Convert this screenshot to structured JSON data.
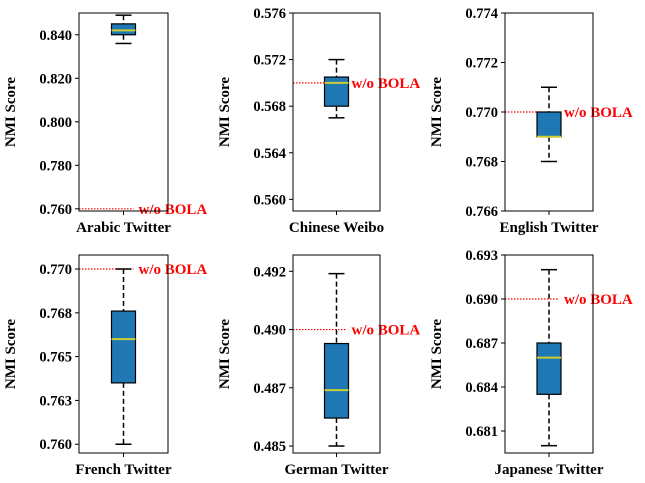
{
  "chart_data": [
    {
      "type": "box",
      "xlabel": "Arabic Twitter",
      "ylabel": "NMI Score",
      "ylim": [
        0.759,
        0.85
      ],
      "yticks": [
        "0.760",
        "0.780",
        "0.800",
        "0.820",
        "0.840"
      ],
      "tick_values": [
        0.76,
        0.78,
        0.8,
        0.82,
        0.84
      ],
      "box": {
        "whisker_low": 0.836,
        "q1": 0.84,
        "median": 0.842,
        "q3": 0.845,
        "whisker_high": 0.849
      },
      "reference": {
        "label": "w/o BOLA",
        "value": 0.76
      }
    },
    {
      "type": "box",
      "xlabel": "Chinese Weibo",
      "ylabel": "NMI Score",
      "ylim": [
        0.559,
        0.576
      ],
      "yticks": [
        "0.560",
        "0.564",
        "0.568",
        "0.572",
        "0.576"
      ],
      "tick_values": [
        0.56,
        0.564,
        0.568,
        0.572,
        0.576
      ],
      "box": {
        "whisker_low": 0.567,
        "q1": 0.568,
        "median": 0.57,
        "q3": 0.5705,
        "whisker_high": 0.572
      },
      "reference": {
        "label": "w/o BOLA",
        "value": 0.57
      }
    },
    {
      "type": "box",
      "xlabel": "English Twitter",
      "ylabel": "NMI Score",
      "ylim": [
        0.766,
        0.774
      ],
      "yticks": [
        "0.766",
        "0.768",
        "0.770",
        "0.772",
        "0.774"
      ],
      "tick_values": [
        0.766,
        0.768,
        0.77,
        0.772,
        0.774
      ],
      "box": {
        "whisker_low": 0.768,
        "q1": 0.769,
        "median": 0.769,
        "q3": 0.77,
        "whisker_high": 0.771
      },
      "reference": {
        "label": "w/o BOLA",
        "value": 0.77
      }
    },
    {
      "type": "box",
      "xlabel": "French Twitter",
      "ylabel": "NMI Score",
      "ylim": [
        0.7595,
        0.7708
      ],
      "yticks": [
        "0.760",
        "0.763",
        "0.765",
        "0.768",
        "0.770"
      ],
      "tick_values": [
        0.76,
        0.7625,
        0.765,
        0.7675,
        0.77
      ],
      "box": {
        "whisker_low": 0.76,
        "q1": 0.7635,
        "median": 0.766,
        "q3": 0.7676,
        "whisker_high": 0.77
      },
      "reference": {
        "label": "w/o BOLA",
        "value": 0.77
      }
    },
    {
      "type": "box",
      "xlabel": "German Twitter",
      "ylabel": "NMI Score",
      "ylim": [
        0.4847,
        0.4932
      ],
      "yticks": [
        "0.485",
        "0.487",
        "0.490",
        "0.492"
      ],
      "tick_values": [
        0.485,
        0.4875,
        0.49,
        0.4925
      ],
      "box": {
        "whisker_low": 0.485,
        "q1": 0.4862,
        "median": 0.4874,
        "q3": 0.4894,
        "whisker_high": 0.4924
      },
      "reference": {
        "label": "w/o BOLA",
        "value": 0.49
      }
    },
    {
      "type": "box",
      "xlabel": "Japanese Twitter",
      "ylabel": "NMI Score",
      "ylim": [
        0.6795,
        0.693
      ],
      "yticks": [
        "0.681",
        "0.684",
        "0.687",
        "0.690",
        "0.693"
      ],
      "tick_values": [
        0.681,
        0.684,
        0.687,
        0.69,
        0.693
      ],
      "box": {
        "whisker_low": 0.68,
        "q1": 0.6835,
        "median": 0.686,
        "q3": 0.687,
        "whisker_high": 0.692
      },
      "reference": {
        "label": "w/o BOLA",
        "value": 0.69
      }
    }
  ],
  "colors": {
    "box_fill": "#1f77b4",
    "median": "#cccc33",
    "reference": "#ff0000",
    "axis": "#000000"
  }
}
